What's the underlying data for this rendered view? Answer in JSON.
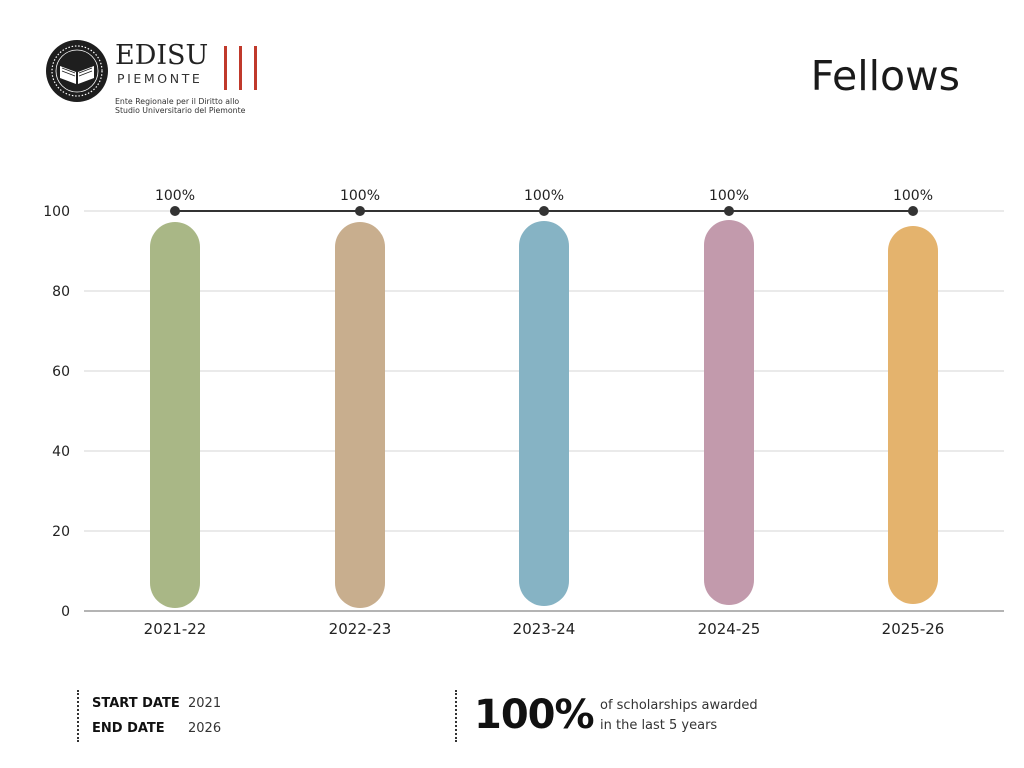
{
  "header": {
    "logo": {
      "name": "EDISU",
      "subname": "PIEMONTE",
      "tagline_line1": "Ente Regionale per il Diritto allo",
      "tagline_line2": "Studio Universitario del Piemonte",
      "accent_color": "#c0392b"
    },
    "title": "Fellows"
  },
  "chart_data": {
    "type": "bar",
    "categories": [
      "2021-22",
      "2022-23",
      "2023-24",
      "2024-25",
      "2025-26"
    ],
    "series": [
      {
        "values": [
          100,
          100,
          100,
          100,
          100
        ],
        "colors": [
          "#a9b786",
          "#c8ae8e",
          "#86b3c4",
          "#c29aac",
          "#e4b36d"
        ],
        "labels": [
          "100%",
          "100%",
          "100%",
          "100%",
          "100%"
        ]
      }
    ],
    "line_series": {
      "values": [
        100,
        100,
        100,
        100,
        100
      ],
      "color": "#333333"
    },
    "ylim": [
      0,
      100
    ],
    "yticks": [
      0,
      20,
      40,
      60,
      80,
      100
    ],
    "grid": true,
    "xlabel": "",
    "ylabel": ""
  },
  "footer": {
    "start_label": "START DATE",
    "start_value": "2021",
    "end_label": "END DATE",
    "end_value": "2026",
    "big_value": "100%",
    "big_note_line1": "of scholarships awarded",
    "big_note_line2": "in the last 5 years"
  }
}
